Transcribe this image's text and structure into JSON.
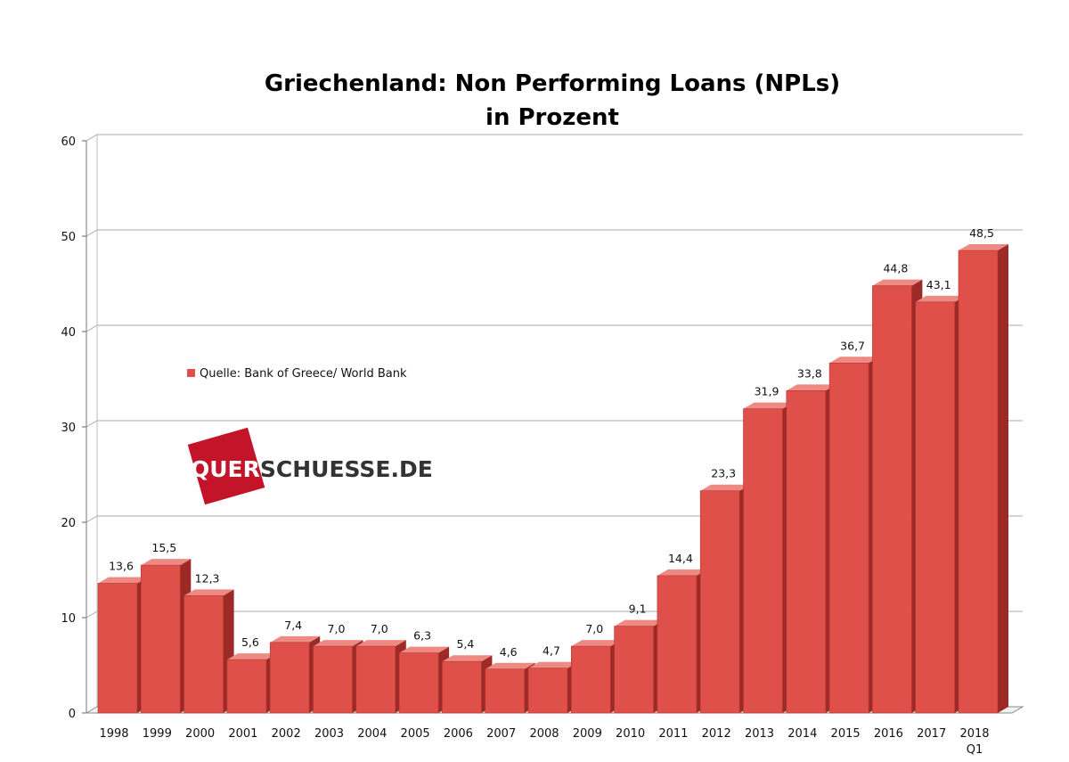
{
  "chart_data": {
    "type": "bar",
    "title": "Griechenland: Non Performing Loans (NPLs)",
    "subtitle": "in Prozent",
    "categories": [
      "1998",
      "1999",
      "2000",
      "2001",
      "2002",
      "2003",
      "2004",
      "2005",
      "2006",
      "2007",
      "2008",
      "2009",
      "2010",
      "2011",
      "2012",
      "2013",
      "2014",
      "2015",
      "2016",
      "2017",
      "2018"
    ],
    "category_sublabels": {
      "2018": "Q1"
    },
    "values": [
      13.6,
      15.5,
      12.3,
      5.6,
      7.4,
      7.0,
      7.0,
      6.3,
      5.4,
      4.6,
      4.7,
      7.0,
      9.1,
      14.4,
      23.3,
      31.9,
      33.8,
      36.7,
      44.8,
      43.1,
      48.5
    ],
    "data_labels": [
      "13,6",
      "15,5",
      "12,3",
      "5,6",
      "7,4",
      "7,0",
      "7,0",
      "6,3",
      "5,4",
      "4,6",
      "4,7",
      "7,0",
      "9,1",
      "14,4",
      "23,3",
      "31,9",
      "33,8",
      "36,7",
      "44,8",
      "43,1",
      "48,5"
    ],
    "ylim": [
      0,
      60
    ],
    "yticks": [
      "0",
      "10",
      "20",
      "30",
      "40",
      "50",
      "60"
    ],
    "grid": true,
    "legend": {
      "label": "Quelle: Bank of Greece/ World Bank",
      "placement": "left-middle"
    },
    "colors": {
      "bar_front": "#e0504a",
      "bar_side": "#9c2a26",
      "bar_top": "#ee8a84",
      "grid": "#a9a9a9"
    },
    "watermark": {
      "part1": "QUER",
      "part2": "SCHUESSE.DE",
      "color_red": "#c4142a",
      "color_dark": "#333333"
    }
  }
}
